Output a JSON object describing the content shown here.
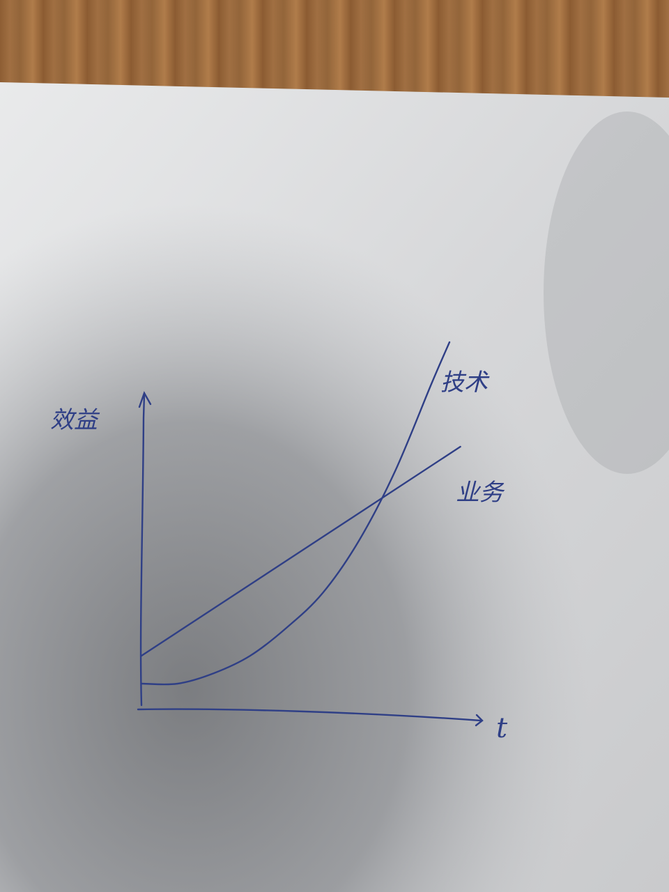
{
  "chart_data": {
    "type": "line",
    "ylabel": "效益",
    "xlabel": "t",
    "xlim": [
      0,
      10
    ],
    "ylim": [
      0,
      10
    ],
    "series": [
      {
        "name": "技术",
        "x": [
          0,
          1,
          2,
          3,
          4,
          5,
          6,
          7,
          8,
          8.5
        ],
        "values": [
          0.7,
          0.7,
          1.0,
          1.5,
          2.3,
          3.3,
          4.8,
          6.8,
          9.3,
          10.5
        ]
      },
      {
        "name": "业务",
        "x": [
          0,
          8.8
        ],
        "values": [
          1.5,
          7.5
        ]
      }
    ],
    "colors": {
      "ink": "#2f3f86"
    }
  }
}
